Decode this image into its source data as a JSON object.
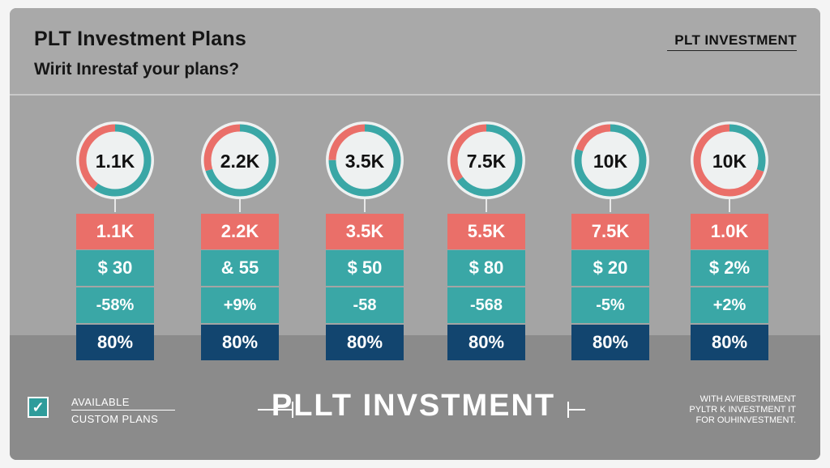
{
  "header": {
    "title": "PLT Investment Plans",
    "subtitle": "Wirit Inrestaf your plans?",
    "brand": "PLT INVESTMENT"
  },
  "plans": [
    {
      "ring_label": "1.1K",
      "row1": "1.1K",
      "row2": "$ 30",
      "row3": "-58%",
      "row4": "80%",
      "ring_fraction": 0.6
    },
    {
      "ring_label": "2.2K",
      "row1": "2.2K",
      "row2": "& 55",
      "row3": "+9%",
      "row4": "80%",
      "ring_fraction": 0.7
    },
    {
      "ring_label": "3.5K",
      "row1": "3.5K",
      "row2": "$ 50",
      "row3": "-58",
      "row4": "80%",
      "ring_fraction": 0.75
    },
    {
      "ring_label": "7.5K",
      "row1": "5.5K",
      "row2": "$ 80",
      "row3": "-568",
      "row4": "80%",
      "ring_fraction": 0.65
    },
    {
      "ring_label": "10K",
      "row1": "7.5K",
      "row2": "$ 20",
      "row3": "-5%",
      "row4": "80%",
      "ring_fraction": 0.8
    },
    {
      "ring_label": "10K",
      "row1": "1.0K",
      "row2": "$ 2%",
      "row3": "+2%",
      "row4": "80%",
      "ring_fraction": 0.3
    }
  ],
  "footer": {
    "available": "AVAILABLE",
    "custom_plans": "CUSTOM PLANS",
    "brand_center": "PLLT INVSTMENT",
    "note_line1": "WITH AVIEBSTRIMENT",
    "note_line2": "PYLTR K INVESTMENT IT",
    "note_line3": "FOR OUHINVESTMENT."
  },
  "colors": {
    "teal": "#3aa7a6",
    "coral": "#ea6f69",
    "navy": "#12456f"
  }
}
